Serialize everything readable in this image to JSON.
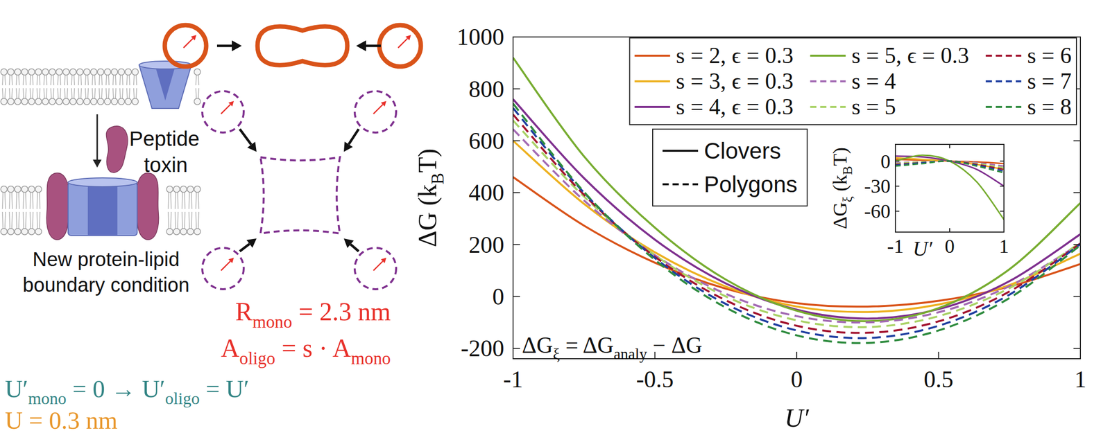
{
  "diagram": {
    "peptide_label": [
      "Peptide",
      "toxin"
    ],
    "boundary_label": [
      "New protein-lipid",
      "boundary condition"
    ],
    "radius_label": [
      {
        "text": "R",
        "sub": "mono"
      },
      {
        "text": " = 2.3 nm"
      }
    ],
    "area_label": [
      {
        "text": "A",
        "sub": "oligo"
      },
      {
        "text": " = s · A",
        "sub": "mono"
      }
    ],
    "curvature_label": [
      {
        "text": "U′",
        "sub": "mono"
      },
      {
        "text": " = 0 → U′",
        "sub": "oligo"
      },
      {
        "text": " = U′"
      }
    ],
    "displacement_label": [
      {
        "text": "U = 0.3 nm"
      }
    ]
  },
  "chart_data": [
    {
      "type": "line",
      "x_label": "U′",
      "y_label": [
        {
          "text": "ΔG (k",
          "sub": "B"
        },
        {
          "text": "T)"
        }
      ],
      "annotation": [
        {
          "text": "ΔG",
          "sub": "ξ"
        },
        {
          "text": " = ΔG",
          "sub": "analy"
        },
        {
          "text": " − ΔG"
        }
      ],
      "x": [
        -1,
        -0.75,
        -0.5,
        -0.25,
        0,
        0.25,
        0.5,
        0.75,
        1
      ],
      "xlim": [
        -1,
        1
      ],
      "xticks": [
        -1,
        -0.5,
        0,
        0.5,
        1
      ],
      "ylim": [
        -240,
        1000
      ],
      "yticks": [
        -200,
        0,
        200,
        400,
        600,
        800,
        1000
      ],
      "grid": false,
      "legend": "top",
      "line_style_key": [
        {
          "label": "Clovers",
          "line_style": "solid"
        },
        {
          "label": "Polygons",
          "line_style": "dashed"
        }
      ],
      "series": [
        {
          "name": "s = 2, ϵ = 0.3",
          "color": "#d95319",
          "line_style": "solid",
          "values": [
            460,
            273,
            130,
            30,
            -26,
            -39,
            -17,
            38,
            125
          ]
        },
        {
          "name": "s = 3, ϵ = 0.3",
          "color": "#edb120",
          "line_style": "solid",
          "values": [
            600,
            357,
            170,
            38,
            -39,
            -60,
            -31,
            44,
            165
          ]
        },
        {
          "name": "s = 4, ϵ = 0.3",
          "color": "#7e2f8e",
          "line_style": "solid",
          "values": [
            760,
            456,
            219,
            50,
            -51,
            -85,
            -49,
            59,
            240
          ]
        },
        {
          "name": "s = 5, ϵ = 0.3",
          "color": "#77ac30",
          "line_style": "solid",
          "values": [
            920,
            540,
            265,
            65,
            -55,
            -95,
            -45,
            105,
            360
          ]
        },
        {
          "name": "s = 4",
          "color": "#a36ab3",
          "line_style": "dashed",
          "values": [
            644,
            370,
            159,
            10,
            -76,
            -100,
            -61,
            40,
            204
          ]
        },
        {
          "name": "s = 5",
          "color": "#a9d266",
          "line_style": "dashed",
          "values": [
            678,
            385,
            159,
            0,
            -92,
            -118,
            -76,
            32,
            207
          ]
        },
        {
          "name": "s = 6",
          "color": "#a2142f",
          "line_style": "dashed",
          "values": [
            701,
            392,
            153,
            -15,
            -113,
            -140,
            -96,
            19,
            204
          ]
        },
        {
          "name": "s = 7",
          "color": "#1f3fa0",
          "line_style": "dashed",
          "values": [
            726,
            400,
            148,
            -29,
            -131,
            -160,
            -113,
            7,
            202
          ]
        },
        {
          "name": "s = 8",
          "color": "#2e8b3e",
          "line_style": "dashed",
          "values": [
            743,
            403,
            141,
            -43,
            -150,
            -179,
            -131,
            -6,
            197
          ]
        }
      ]
    },
    {
      "type": "line",
      "x_label": "U′",
      "y_label": [
        {
          "text": "ΔG",
          "sub": "ξ"
        },
        {
          "text": " (k",
          "sub": "B"
        },
        {
          "text": "T)"
        }
      ],
      "x": [
        -1,
        -0.5,
        0,
        0.5,
        1
      ],
      "xlim": [
        -1,
        1
      ],
      "xticks": [
        -1,
        0,
        1
      ],
      "ylim": [
        -85,
        20
      ],
      "yticks": [
        -60,
        -30,
        0
      ],
      "grid": false,
      "series": [
        {
          "color": "#d95319",
          "line_style": "solid",
          "values": [
            2,
            1,
            0,
            -1,
            -3
          ]
        },
        {
          "color": "#edb120",
          "line_style": "solid",
          "values": [
            4,
            2,
            0,
            -4,
            -10
          ]
        },
        {
          "color": "#7e2f8e",
          "line_style": "solid",
          "values": [
            6,
            5,
            0,
            -10,
            -30
          ]
        },
        {
          "color": "#77ac30",
          "line_style": "solid",
          "values": [
            0,
            7,
            0,
            -25,
            -70
          ]
        },
        {
          "color": "#a36ab3",
          "line_style": "dashed",
          "values": [
            -2,
            -1,
            0,
            -2,
            -6
          ]
        },
        {
          "color": "#a9d266",
          "line_style": "dashed",
          "values": [
            -3,
            -1,
            0,
            -3,
            -8
          ]
        },
        {
          "color": "#a2142f",
          "line_style": "dashed",
          "values": [
            -4,
            -2,
            0,
            -4,
            -10
          ]
        },
        {
          "color": "#1f3fa0",
          "line_style": "dashed",
          "values": [
            -5,
            -2,
            0,
            -5,
            -12
          ]
        },
        {
          "color": "#2e8b3e",
          "line_style": "dashed",
          "values": [
            -6,
            -3,
            0,
            -6,
            -14
          ]
        }
      ]
    }
  ]
}
